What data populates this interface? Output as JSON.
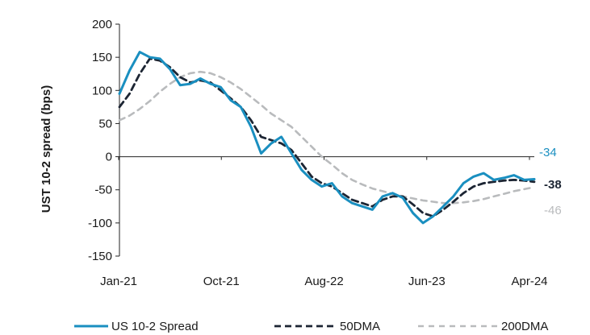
{
  "chart_data": {
    "type": "line",
    "ylabel": "UST 10-2 spread (bps)",
    "ylim": [
      -150,
      200
    ],
    "yticks": [
      "200",
      "150",
      "100",
      "50",
      "0",
      "-50",
      "-100",
      "-150"
    ],
    "xtick_labels": [
      "Jan-21",
      "Oct-21",
      "Aug-22",
      "Jun-23",
      "Apr-24"
    ],
    "xlim": [
      "2021-01",
      "2024-06"
    ],
    "grid": false,
    "legend_position": "bottom",
    "colors": {
      "spread": "#1a8fc0",
      "ma50": "#1c2533",
      "ma200": "#b9bbbd"
    },
    "series": [
      {
        "name": "US 10-2 Spread",
        "style": "solid",
        "x": [
          "2021-01",
          "2021-02",
          "2021-03",
          "2021-04",
          "2021-05",
          "2021-06",
          "2021-07",
          "2021-08",
          "2021-09",
          "2021-10",
          "2021-11",
          "2021-12",
          "2022-01",
          "2022-02",
          "2022-03",
          "2022-04",
          "2022-05",
          "2022-06",
          "2022-07",
          "2022-08",
          "2022-09",
          "2022-10",
          "2022-11",
          "2022-12",
          "2023-01",
          "2023-02",
          "2023-03",
          "2023-04",
          "2023-05",
          "2023-06",
          "2023-07",
          "2023-08",
          "2023-09",
          "2023-10",
          "2023-11",
          "2023-12",
          "2024-01",
          "2024-02",
          "2024-03",
          "2024-04",
          "2024-05",
          "2024-06"
        ],
        "values": [
          95,
          130,
          158,
          150,
          148,
          132,
          108,
          110,
          118,
          110,
          105,
          85,
          75,
          45,
          5,
          20,
          30,
          5,
          -20,
          -35,
          -45,
          -40,
          -60,
          -70,
          -75,
          -80,
          -60,
          -55,
          -62,
          -85,
          -100,
          -90,
          -75,
          -60,
          -40,
          -30,
          -25,
          -35,
          -32,
          -28,
          -35,
          -34
        ],
        "end_label": "-34"
      },
      {
        "name": "50DMA",
        "style": "dashed",
        "x": [
          "2021-01",
          "2021-02",
          "2021-03",
          "2021-04",
          "2021-05",
          "2021-06",
          "2021-07",
          "2021-08",
          "2021-09",
          "2021-10",
          "2021-11",
          "2021-12",
          "2022-01",
          "2022-02",
          "2022-03",
          "2022-04",
          "2022-05",
          "2022-06",
          "2022-07",
          "2022-08",
          "2022-09",
          "2022-10",
          "2022-11",
          "2022-12",
          "2023-01",
          "2023-02",
          "2023-03",
          "2023-04",
          "2023-05",
          "2023-06",
          "2023-07",
          "2023-08",
          "2023-09",
          "2023-10",
          "2023-11",
          "2023-12",
          "2024-01",
          "2024-02",
          "2024-03",
          "2024-04",
          "2024-05",
          "2024-06"
        ],
        "values": [
          75,
          95,
          125,
          148,
          145,
          135,
          120,
          112,
          115,
          112,
          100,
          88,
          75,
          55,
          30,
          25,
          20,
          10,
          -10,
          -30,
          -40,
          -45,
          -55,
          -65,
          -70,
          -75,
          -65,
          -60,
          -60,
          -72,
          -85,
          -90,
          -80,
          -68,
          -55,
          -45,
          -40,
          -38,
          -36,
          -35,
          -36,
          -38
        ],
        "end_label": "-38"
      },
      {
        "name": "200DMA",
        "style": "dashed",
        "x": [
          "2021-01",
          "2021-02",
          "2021-03",
          "2021-04",
          "2021-05",
          "2021-06",
          "2021-07",
          "2021-08",
          "2021-09",
          "2021-10",
          "2021-11",
          "2021-12",
          "2022-01",
          "2022-02",
          "2022-03",
          "2022-04",
          "2022-05",
          "2022-06",
          "2022-07",
          "2022-08",
          "2022-09",
          "2022-10",
          "2022-11",
          "2022-12",
          "2023-01",
          "2023-02",
          "2023-03",
          "2023-04",
          "2023-05",
          "2023-06",
          "2023-07",
          "2023-08",
          "2023-09",
          "2023-10",
          "2023-11",
          "2023-12",
          "2024-01",
          "2024-02",
          "2024-03",
          "2024-04",
          "2024-05",
          "2024-06"
        ],
        "values": [
          55,
          62,
          72,
          84,
          98,
          110,
          120,
          126,
          128,
          126,
          120,
          112,
          102,
          90,
          78,
          65,
          55,
          45,
          30,
          15,
          0,
          -12,
          -25,
          -35,
          -42,
          -48,
          -52,
          -56,
          -60,
          -63,
          -66,
          -68,
          -70,
          -70,
          -69,
          -67,
          -64,
          -60,
          -56,
          -52,
          -49,
          -46
        ],
        "end_label": "-46"
      }
    ]
  }
}
